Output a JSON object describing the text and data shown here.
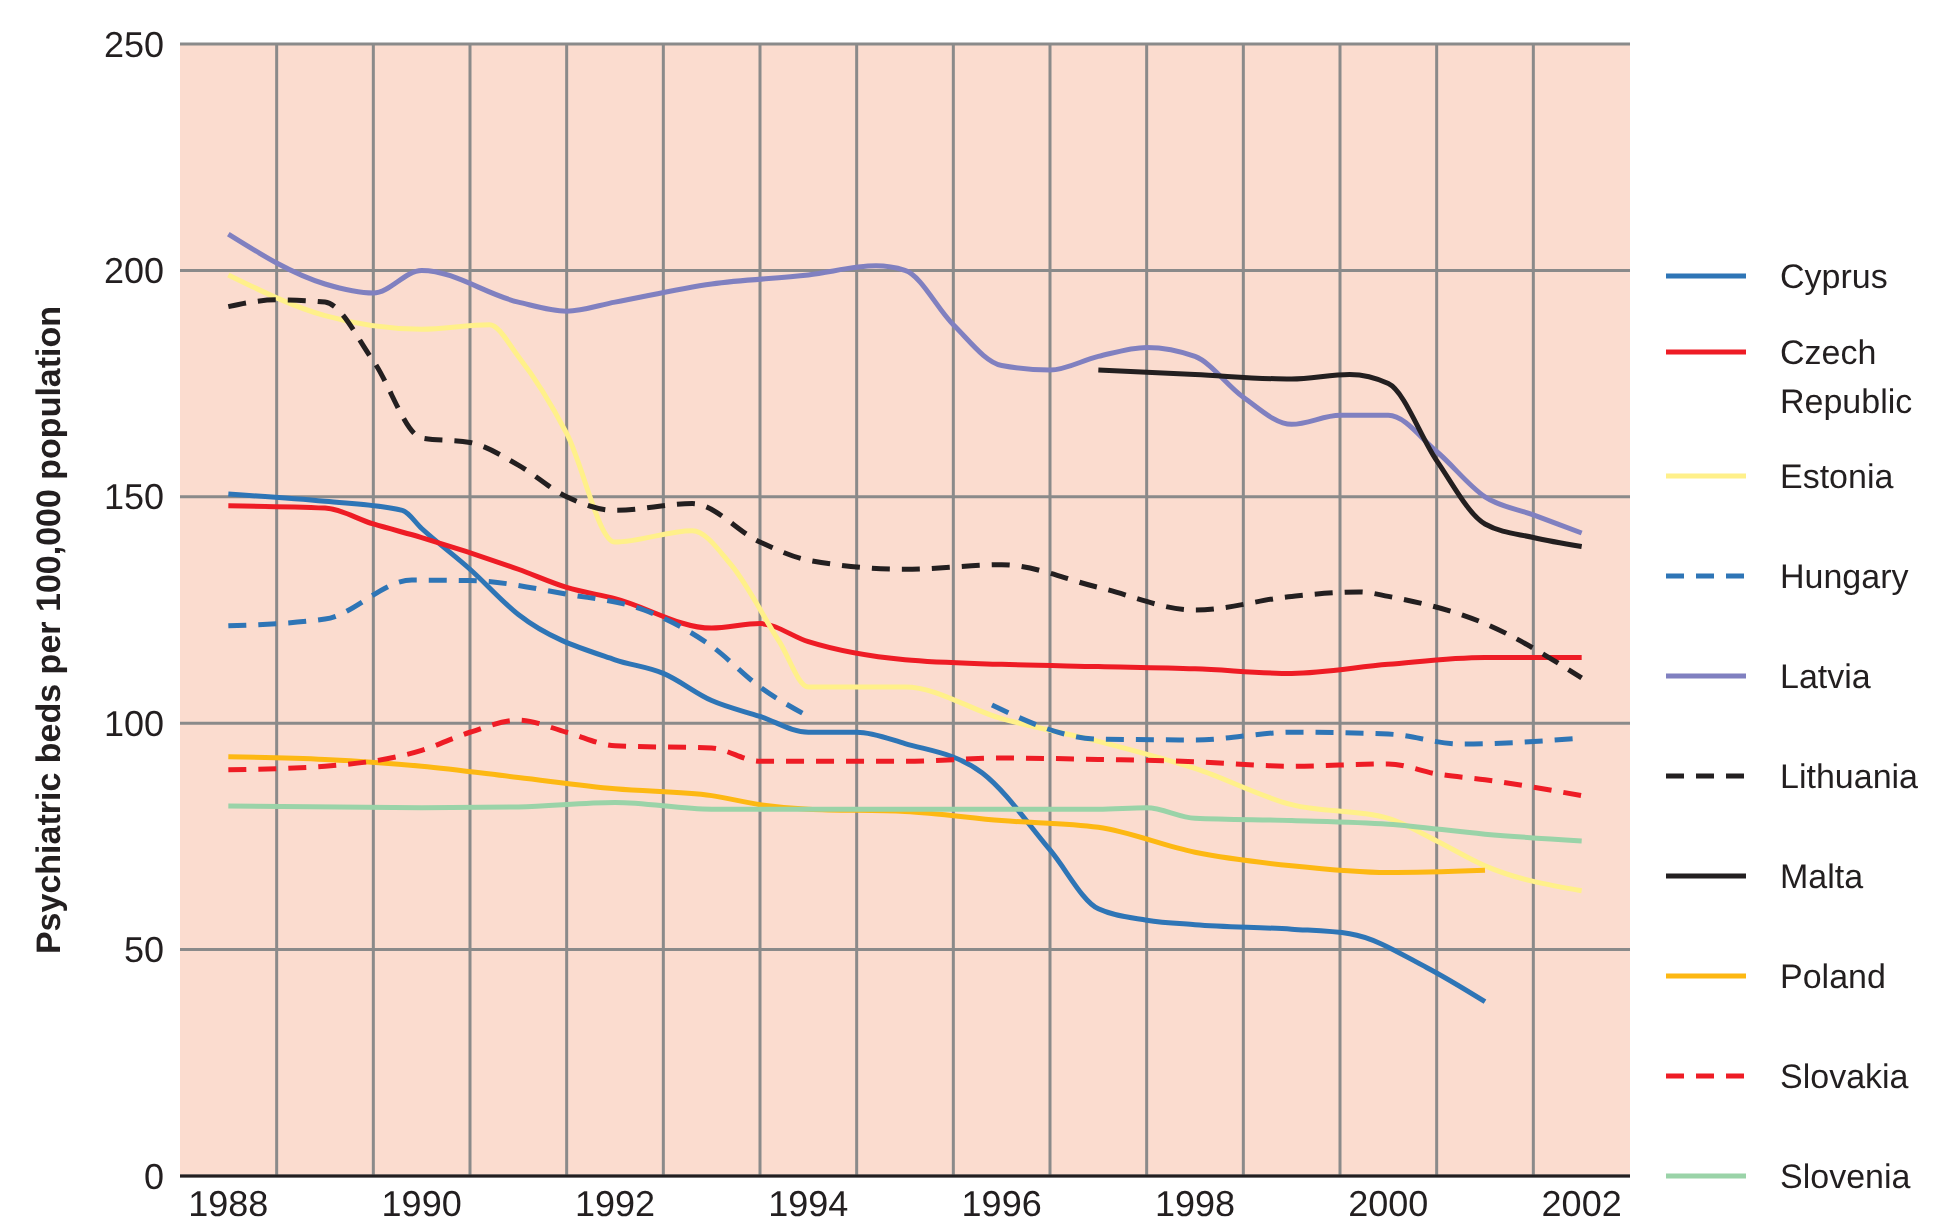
{
  "chart_data": {
    "type": "line",
    "ylabel": "Psychiatric beds per 100,000 population",
    "xlim": [
      1987.5,
      2002.5
    ],
    "ylim": [
      0,
      250
    ],
    "xticks": [
      1988,
      {
        "value": 1988.5,
        "label": null
      },
      1990,
      {
        "value": 1989.5,
        "label": null
      },
      1992,
      {
        "value": 1990.5,
        "label": null
      },
      1994,
      {
        "value": 1991.5,
        "label": null
      },
      1996,
      {
        "value": 1992.5,
        "label": null
      },
      1998,
      {
        "value": 1993.5,
        "label": null
      },
      2000,
      {
        "value": 1994.5,
        "label": null
      },
      2002,
      {
        "value": 1995.5,
        "label": null
      },
      {
        "value": 1996.5,
        "label": null
      },
      {
        "value": 1997.5,
        "label": null
      },
      {
        "value": 1998.5,
        "label": null
      },
      {
        "value": 1999.5,
        "label": null
      },
      {
        "value": 2000.5,
        "label": null
      },
      {
        "value": 2001.5,
        "label": null
      }
    ],
    "yticks": [
      0,
      50,
      100,
      150,
      200,
      250
    ],
    "grid": true,
    "legend": "right",
    "series": [
      {
        "name": "Cyprus",
        "color": "#2e75b6",
        "line_style": "solid",
        "x": [
          1988,
          1989,
          1989.8,
          1990,
          1990.5,
          1991,
          1992,
          1992.5,
          1993,
          1993.5,
          1994,
          1994.5,
          1995,
          1995.8,
          1996.5,
          1997,
          1997.5,
          1998,
          1999,
          1999.6,
          2000.4,
          2001
        ],
        "values": [
          150.6,
          149,
          147,
          143,
          134,
          124,
          114,
          111,
          105,
          101.5,
          98,
          98,
          95.5,
          89,
          72,
          59,
          56.5,
          55.5,
          54.5,
          53.5,
          46,
          38.5
        ]
      },
      {
        "name": "Czech Republic",
        "color": "#ee1c25",
        "line_style": "solid",
        "x": [
          1988,
          1989,
          1989.5,
          1990,
          1991,
          1991.5,
          1992,
          1993,
          1993.5,
          1994,
          1995,
          1996,
          1997,
          1998,
          1999,
          2000,
          2001,
          2002
        ],
        "values": [
          148,
          147.5,
          144,
          141,
          134,
          130,
          127.5,
          121,
          122,
          118,
          114,
          113,
          112.5,
          112,
          111,
          113,
          114.5,
          114.5
        ]
      },
      {
        "name": "Estonia",
        "color": "#fff08a",
        "line_style": "solid",
        "x": [
          1988,
          1989,
          1990,
          1990.7,
          1991,
          1991.5,
          1992,
          1992.8,
          1993.2,
          1993.7,
          1994,
          1995,
          1996,
          1997,
          1998,
          1999,
          2000,
          2000.5,
          2001,
          2002
        ],
        "values": [
          199,
          190,
          187,
          188,
          181,
          164,
          140,
          142.5,
          135,
          118,
          108,
          108,
          101,
          96,
          90,
          82,
          79,
          74,
          68.5,
          63
        ]
      },
      {
        "name": "Hungary",
        "color": "#2e75b6",
        "line_style": "dashed",
        "x": [
          1988,
          1989,
          1989.9,
          1990.5,
          1991.5,
          1992.3,
          1993,
          1993.5,
          1994,
          1995,
          1995.9,
          1997,
          1998,
          1999,
          2000,
          2000.75,
          2002
        ],
        "values": [
          121.5,
          123,
          131.6,
          131.5,
          128.5,
          125,
          117,
          108,
          101.5,
          null,
          104,
          96.5,
          96.3,
          98,
          97.6,
          95.4,
          96.7
        ]
      },
      {
        "name": "Latvia",
        "color": "#8080c0",
        "line_style": "solid",
        "x": [
          1988,
          1989,
          1989.5,
          1990,
          1991,
          1991.5,
          1992,
          1993,
          1994,
          1994.7,
          1995,
          1995.5,
          1996,
          1996.5,
          1997,
          1997.5,
          1998,
          1998.5,
          1999,
          1999.5,
          2000,
          2000.5,
          2001,
          2001.5,
          2002
        ],
        "values": [
          208,
          197,
          195,
          200,
          193,
          191,
          193,
          197,
          199,
          201,
          200,
          188,
          179,
          178,
          181,
          183,
          181,
          172,
          166,
          168,
          168,
          160,
          150,
          146,
          142
        ]
      },
      {
        "name": "Lithuania",
        "color": "#231f20",
        "line_style": "dashed",
        "x": [
          1988,
          1988.5,
          1989,
          1989.5,
          1990,
          1990.5,
          1991,
          1991.5,
          1992,
          1992.8,
          1993.5,
          1994,
          1995,
          1996,
          1997,
          1998,
          1999,
          1999.7,
          2000,
          2001,
          2002
        ],
        "values": [
          192,
          193.5,
          193,
          180,
          163,
          162,
          157,
          150,
          147,
          148.5,
          140,
          136,
          134,
          135,
          130,
          125,
          128,
          129,
          128,
          122,
          110
        ]
      },
      {
        "name": "Malta",
        "color": "#231f20",
        "line_style": "solid",
        "x": [
          1997,
          1998,
          1999,
          1999.6,
          2000,
          2000.5,
          2001,
          2001.5,
          2002
        ],
        "values": [
          178,
          177,
          176,
          177,
          175,
          158,
          144,
          141,
          139
        ]
      },
      {
        "name": "Poland",
        "color": "#fdb813",
        "line_style": "solid",
        "x": [
          1988,
          1989,
          1990,
          1991,
          1992,
          1993,
          1993.5,
          1994,
          1995,
          1996,
          1997,
          1998,
          1999,
          2000,
          2001
        ],
        "values": [
          92.6,
          92,
          90.5,
          88,
          85.5,
          84,
          82,
          81,
          80.5,
          78.5,
          77,
          71.5,
          68.5,
          67,
          67.5
        ]
      },
      {
        "name": "Slovakia",
        "color": "#ee1c25",
        "line_style": "dashed",
        "x": [
          1988,
          1989,
          1990,
          1990.5,
          1991,
          1991.5,
          1992,
          1993,
          1993.5,
          1995,
          1996,
          1997,
          1998,
          1999,
          2000,
          2000.5,
          2001,
          2002
        ],
        "values": [
          89.7,
          90.5,
          94,
          98,
          100.7,
          98,
          95,
          94.5,
          91.6,
          91.6,
          92.3,
          92,
          91.5,
          90.5,
          91,
          88.8,
          87.5,
          84
        ]
      },
      {
        "name": "Slovenia",
        "color": "#9ad3a8",
        "line_style": "solid",
        "x": [
          1988,
          1990,
          1991,
          1992,
          1993,
          1995,
          1996,
          1997,
          1997.5,
          1998,
          1999,
          2000,
          2001,
          2002
        ],
        "values": [
          81.7,
          81.3,
          81.5,
          82.5,
          81,
          81,
          81,
          81,
          81.3,
          79,
          78.5,
          77.7,
          75.5,
          74
        ]
      }
    ]
  }
}
